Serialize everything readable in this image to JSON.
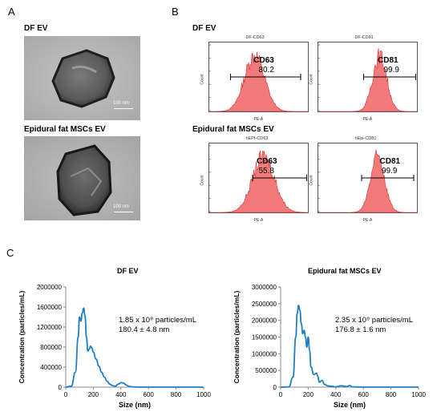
{
  "panels": {
    "a": "A",
    "b": "B",
    "c": "C"
  },
  "tem": [
    {
      "title": "DF EV",
      "scale": "100 nm"
    },
    {
      "title": "Epidural fat MSCs EV",
      "scale": "100 nm"
    }
  ],
  "flow": {
    "group_titles": [
      "DF EV",
      "Epidural fat MSCs EV"
    ],
    "xlabel": "PE-A",
    "ylabel": "Count",
    "plots": [
      {
        "title": "DF-CD63",
        "marker": "CD63",
        "percent": "80.2"
      },
      {
        "title": "DF-CD81",
        "marker": "CD81",
        "percent": "99.9"
      },
      {
        "title": "hEPI-CD63",
        "marker": "CD63",
        "percent": "55.8"
      },
      {
        "title": "hEpi-CD81",
        "marker": "CD81",
        "percent": "99.9"
      }
    ]
  },
  "colors": {
    "histogram_fill": "#f27a7a",
    "histogram_stroke": "#d83030",
    "nta_line": "#1f7fc4"
  },
  "chart_data": [
    {
      "type": "line",
      "title": "DF EV",
      "xlabel": "Size (nm)",
      "ylabel": "Concentration (particles/mL)",
      "xlim": [
        0,
        1000
      ],
      "ylim": [
        0,
        2000000
      ],
      "xticks": [
        0,
        200,
        400,
        600,
        800,
        1000
      ],
      "yticks": [
        0,
        400000,
        800000,
        1200000,
        1600000,
        2000000
      ],
      "annotation": [
        "1.85 x 10⁹ particles/mL",
        "180.4 ± 4.8 nm"
      ],
      "x": [
        0,
        40,
        70,
        90,
        100,
        110,
        120,
        130,
        140,
        150,
        160,
        170,
        180,
        190,
        200,
        220,
        240,
        260,
        280,
        300,
        320,
        340,
        360,
        380,
        400,
        420,
        440,
        460,
        480,
        500,
        520,
        560,
        600,
        1000
      ],
      "y": [
        0,
        20000,
        300000,
        1000000,
        1400000,
        1320000,
        1480000,
        1580000,
        1420000,
        1000000,
        720000,
        760000,
        820000,
        780000,
        700000,
        560000,
        420000,
        300000,
        200000,
        120000,
        60000,
        30000,
        20000,
        60000,
        90000,
        80000,
        40000,
        15000,
        8000,
        4000,
        2000,
        0,
        0,
        0
      ]
    },
    {
      "type": "line",
      "title": "Epidural fat MSCs EV",
      "xlabel": "Size (nm)",
      "ylabel": "Concentration (particles/mL)",
      "xlim": [
        0,
        1000
      ],
      "ylim": [
        0,
        3000000
      ],
      "xticks": [
        0,
        200,
        400,
        600,
        800,
        1000
      ],
      "yticks": [
        0,
        500000,
        1000000,
        1500000,
        2000000,
        2500000,
        3000000
      ],
      "annotation": [
        "2.35 x 10⁹ particles/mL",
        "176.8 ± 1.6 nm"
      ],
      "x": [
        0,
        60,
        90,
        110,
        120,
        130,
        140,
        150,
        160,
        170,
        180,
        190,
        200,
        210,
        220,
        240,
        260,
        270,
        280,
        300,
        320,
        340,
        360,
        400,
        440,
        480,
        500,
        520,
        560,
        600,
        1000
      ],
      "y": [
        0,
        10000,
        300000,
        1500000,
        2200000,
        2450000,
        2300000,
        1900000,
        1600000,
        1700000,
        1500000,
        1200000,
        1500000,
        1100000,
        600000,
        380000,
        420000,
        320000,
        150000,
        200000,
        80000,
        40000,
        30000,
        10000,
        40000,
        20000,
        50000,
        10000,
        5000,
        0,
        0
      ]
    }
  ]
}
